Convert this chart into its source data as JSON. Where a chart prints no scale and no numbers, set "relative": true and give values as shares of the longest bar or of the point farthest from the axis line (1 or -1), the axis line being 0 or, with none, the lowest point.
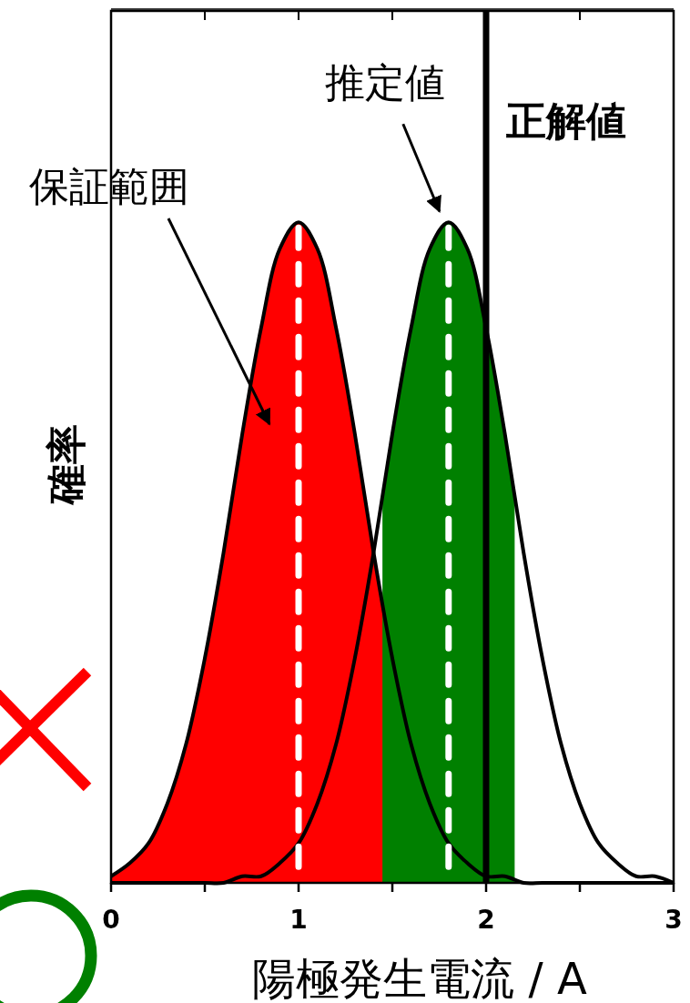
{
  "chart_data": {
    "type": "line",
    "xlabel": "陽極発生電流 / A",
    "ylabel": "確率",
    "relative": true,
    "xlim": [
      0,
      3
    ],
    "xticks": [
      0,
      {
        "value": 0.5,
        "label": null
      },
      1,
      {
        "value": 1.5,
        "label": null
      },
      2,
      {
        "value": 2.5,
        "label": null
      },
      3
    ],
    "tick_labels": "x",
    "grid": false,
    "series": [
      {
        "type": "area",
        "color": "#ff0000",
        "x": [
          0,
          0.1,
          0.2,
          0.3,
          0.4,
          0.5,
          0.6,
          0.7,
          0.8,
          0.9,
          1,
          1.1,
          1.2,
          1.3,
          1.4,
          1.45
        ],
        "values": [
          0.01,
          0.03,
          0.06,
          0.12,
          0.21,
          0.34,
          0.5,
          0.68,
          0.84,
          0.96,
          1,
          0.96,
          0.84,
          0.68,
          0.5,
          0.41
        ]
      },
      {
        "type": "area",
        "color": "#008000",
        "x": [
          1.45,
          1.5,
          1.6,
          1.7,
          1.8,
          1.9,
          2,
          2.1,
          2.15
        ],
        "values": [
          0.59,
          0.68,
          0.84,
          0.96,
          1,
          0.96,
          0.84,
          0.68,
          0.59
        ]
      },
      {
        "color": "#000000",
        "x": [
          0,
          0.1,
          0.2,
          0.3,
          0.4,
          0.5,
          0.6,
          0.7,
          0.8,
          0.9,
          1,
          1.1,
          1.2,
          1.3,
          1.4,
          1.5,
          1.6,
          1.7,
          1.8,
          1.9,
          2,
          2.1,
          2.2,
          2.3,
          2.4,
          2.5,
          2.6,
          2.7,
          2.8,
          2.9,
          3
        ],
        "values": [
          0.01,
          0.03,
          0.06,
          0.12,
          0.21,
          0.34,
          0.5,
          0.68,
          0.84,
          0.96,
          1,
          0.96,
          0.84,
          0.68,
          0.5,
          0.34,
          0.21,
          0.12,
          0.06,
          0.03,
          0.01,
          0.01,
          0,
          0,
          0,
          0,
          0,
          0,
          0,
          0,
          0
        ]
      },
      {
        "color": "#000000",
        "x": [
          0,
          0.1,
          0.2,
          0.3,
          0.4,
          0.5,
          0.6,
          0.7,
          0.8,
          0.9,
          1,
          1.1,
          1.2,
          1.3,
          1.4,
          1.5,
          1.6,
          1.7,
          1.8,
          1.9,
          2,
          2.1,
          2.2,
          2.3,
          2.4,
          2.5,
          2.6,
          2.7,
          2.8,
          2.9,
          3
        ],
        "values": [
          0,
          0,
          0,
          0,
          0,
          0,
          0,
          0.01,
          0.01,
          0.03,
          0.06,
          0.12,
          0.21,
          0.34,
          0.5,
          0.68,
          0.84,
          0.96,
          1,
          0.96,
          0.84,
          0.68,
          0.5,
          0.34,
          0.21,
          0.12,
          0.06,
          0.03,
          0.01,
          0.01,
          0
        ]
      }
    ],
    "ref_lines": [
      {
        "axis": "x",
        "value": 1,
        "label": null,
        "color": "#ffffff",
        "line_style": "dashed"
      },
      {
        "axis": "x",
        "value": 1.8,
        "label": null,
        "color": "#ffffff",
        "line_style": "dashed"
      },
      {
        "axis": "x",
        "value": 2,
        "label": "正解値",
        "color": "#000000",
        "line_style": "solid"
      }
    ],
    "annotations": [
      {
        "text": "推定値",
        "x": 1.8,
        "y": 1
      },
      "保証範囲"
    ]
  }
}
